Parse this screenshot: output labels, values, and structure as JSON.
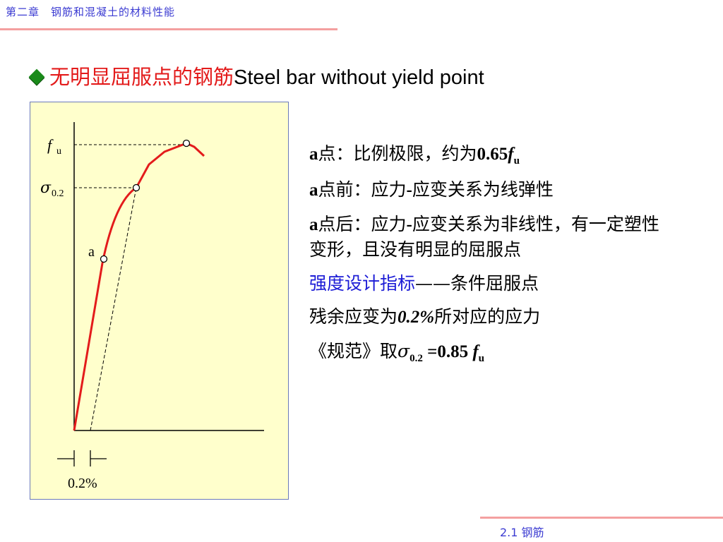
{
  "header": {
    "title": "第二章　钢筋和混凝土的材料性能"
  },
  "heading": {
    "zh": "无明显屈服点的钢筋",
    "en": "Steel bar without yield point"
  },
  "plot": {
    "fu_symbol": "f",
    "fu_sub": "u",
    "sigma_symbol": "σ",
    "sigma_sub": "0.2",
    "point_a": "a",
    "strain_label": "0.2%"
  },
  "notes": {
    "l1_pre": "a",
    "l1_text": "点：比例极限，约为",
    "l1_num": "0.65",
    "l1_f": "f",
    "l1_sub": "u",
    "l2_pre": "a",
    "l2_text": "点前：应力",
    "l2_dash": "-",
    "l2_text2": "应变关系为线弹性",
    "l3_pre": "a",
    "l3_text": "点后：应力",
    "l3_dash": "-",
    "l3_text2": "应变关系为非线性，有一定塑性变形，且没有明显的屈服点",
    "l4_blue": "强度设计指标",
    "l4_dash": "——",
    "l4_text": "条件屈服点",
    "l5_text": "残余应变为",
    "l5_val": "0.2%",
    "l5_text2": "所对应的应力",
    "l6_text": "《规范》取",
    "l6_sigma": "σ",
    "l6_sub": "0.2",
    "l6_eq": " =0.85 ",
    "l6_f": "f",
    "l6_fsub": "u"
  },
  "footer": {
    "section": "2.1 钢筋"
  },
  "colors": {
    "accent": "#3c3cd2",
    "curve": "#e31b1b",
    "plot_bg": "#ffffcc",
    "rule": "#f4a0a0"
  }
}
